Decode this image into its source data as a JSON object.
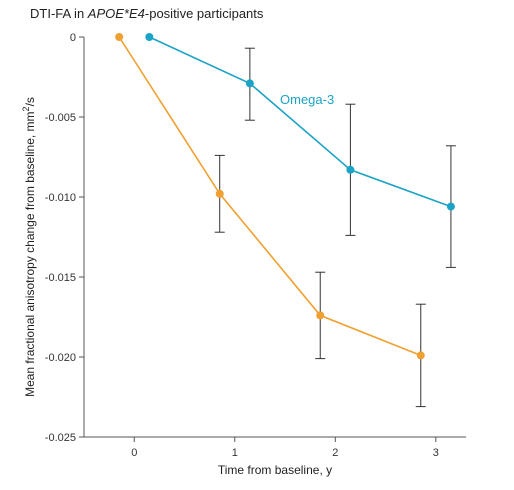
{
  "chart_data": {
    "type": "line",
    "title_parts": [
      {
        "text": "DTI-FA in ",
        "italic": false
      },
      {
        "text": "APOE*E4",
        "italic": true
      },
      {
        "text": "-positive participants",
        "italic": false
      }
    ],
    "xlabel": "Time from baseline, y",
    "ylabel_main": "Mean fractional anisotropy change from baseline, mm",
    "ylabel_sup": "2",
    "ylabel_tail": "/s",
    "xlim": [
      -0.5,
      3.3
    ],
    "ylim": [
      -0.025,
      0.0
    ],
    "x_ticks": [
      0,
      1,
      2,
      3
    ],
    "y_ticks": [
      0,
      -0.005,
      -0.01,
      -0.015,
      -0.02,
      -0.025
    ],
    "y_tick_labels": [
      "0",
      "-0.005",
      "-0.010",
      "-0.015",
      "-0.020",
      "-0.025"
    ],
    "series": [
      {
        "name": "Omega-3",
        "color": "#1ba3c6",
        "show_label": true,
        "x": [
          0.15,
          1.15,
          2.15,
          3.15
        ],
        "y": [
          0.0,
          -0.0029,
          -0.0083,
          -0.0106
        ],
        "err_low": [
          null,
          -0.0052,
          -0.0124,
          -0.0144
        ],
        "err_high": [
          null,
          -0.0007,
          -0.0042,
          -0.0068
        ]
      },
      {
        "name": "",
        "color": "#f0a030",
        "show_label": false,
        "x": [
          -0.15,
          0.85,
          1.85,
          2.85
        ],
        "y": [
          0.0,
          -0.0098,
          -0.0174,
          -0.0199
        ],
        "err_low": [
          null,
          -0.0122,
          -0.0201,
          -0.0231
        ],
        "err_high": [
          null,
          -0.0074,
          -0.0147,
          -0.0167
        ]
      }
    ],
    "grid": false
  }
}
